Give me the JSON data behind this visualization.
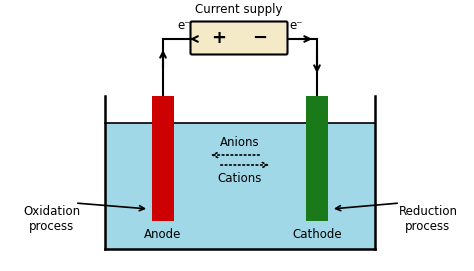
{
  "bg_color": "#ffffff",
  "solution_color": "#a0d8e8",
  "anode_color": "#cc0000",
  "cathode_color": "#1a7a1a",
  "battery_color": "#f5eac8",
  "battery_edge_color": "#000000",
  "title": "Current supply",
  "anode_label": "Anode",
  "cathode_label": "Cathode",
  "oxidation_label": "Oxidation\nprocess",
  "reduction_label": "Reduction\nprocess",
  "anions_label": "Anions",
  "cations_label": "Cations",
  "e_minus": "e⁻",
  "plus_sign": "+",
  "minus_sign": "−",
  "font_size": 8.5,
  "label_font": 8.5
}
